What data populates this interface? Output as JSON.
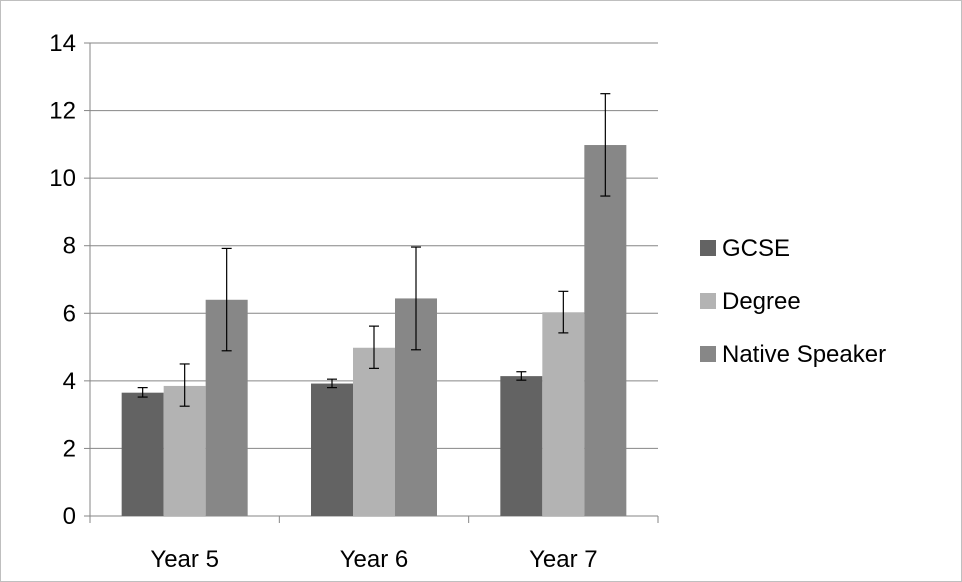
{
  "chart_data": {
    "type": "bar",
    "title": "",
    "xlabel": "",
    "ylabel": "",
    "categories": [
      "Year 5",
      "Year 6",
      "Year 7"
    ],
    "ylim": [
      0,
      14
    ],
    "yticks": [
      0,
      2,
      4,
      6,
      8,
      10,
      12,
      14
    ],
    "grid": true,
    "legend_position": "right",
    "series": [
      {
        "name": "GCSE",
        "color": "#636363",
        "values": [
          3.65,
          3.92,
          4.14
        ],
        "error_low": [
          3.52,
          3.8,
          4.02
        ],
        "error_high": [
          3.8,
          4.05,
          4.27
        ]
      },
      {
        "name": "Degree",
        "color": "#b3b3b3",
        "values": [
          3.85,
          4.98,
          6.03
        ],
        "error_low": [
          3.25,
          4.37,
          5.42
        ],
        "error_high": [
          4.5,
          5.62,
          6.65
        ]
      },
      {
        "name": "Native Speaker",
        "color": "#878787",
        "values": [
          6.4,
          6.44,
          10.98
        ],
        "error_low": [
          4.89,
          4.92,
          9.47
        ],
        "error_high": [
          7.92,
          7.96,
          12.5
        ]
      }
    ]
  }
}
